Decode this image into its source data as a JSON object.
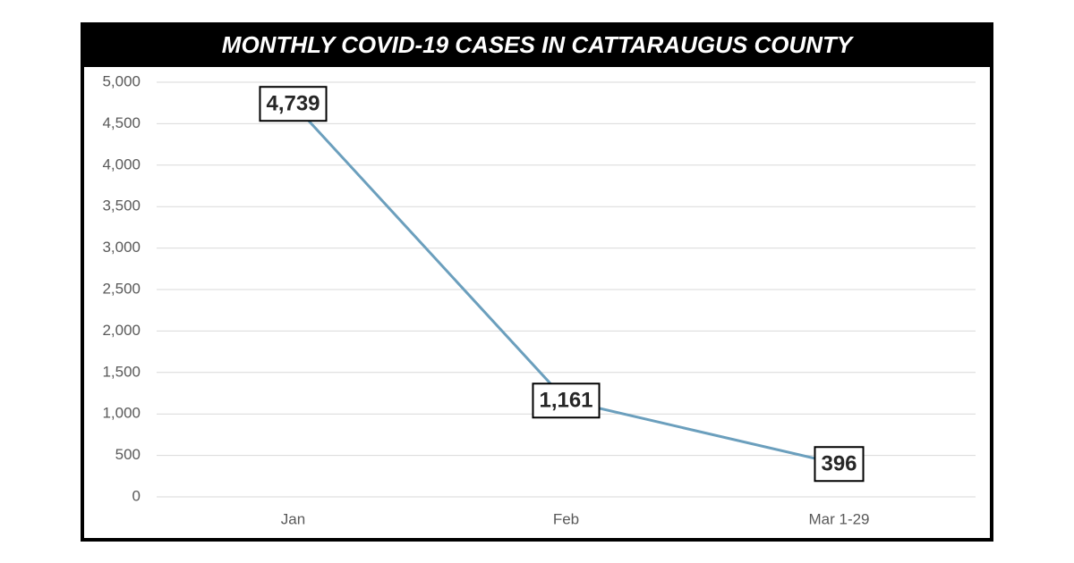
{
  "chart_data": {
    "type": "line",
    "title": "MONTHLY COVID-19 CASES IN CATTARAUGUS COUNTY",
    "categories": [
      "Jan",
      "Feb",
      "Mar 1-29"
    ],
    "series": [
      {
        "color": "#6b9fbd",
        "values": [
          4739,
          1161,
          396
        ],
        "value_labels": [
          "4,739",
          "1,161",
          "396"
        ]
      }
    ],
    "ylim": [
      0,
      5000
    ],
    "yticks": [
      0,
      500,
      {
        "value": 1000,
        "label": "1,000"
      },
      {
        "value": 1500,
        "label": "1,500"
      },
      {
        "value": 2000,
        "label": "2,000"
      },
      {
        "value": 2500,
        "label": "2,500"
      },
      {
        "value": 3000,
        "label": "3,000"
      },
      {
        "value": 3500,
        "label": "3,500"
      },
      {
        "value": 4000,
        "label": "4,000"
      },
      {
        "value": 4500,
        "label": "4,500"
      },
      {
        "value": 5000,
        "label": "5,000"
      }
    ],
    "grid": true
  }
}
